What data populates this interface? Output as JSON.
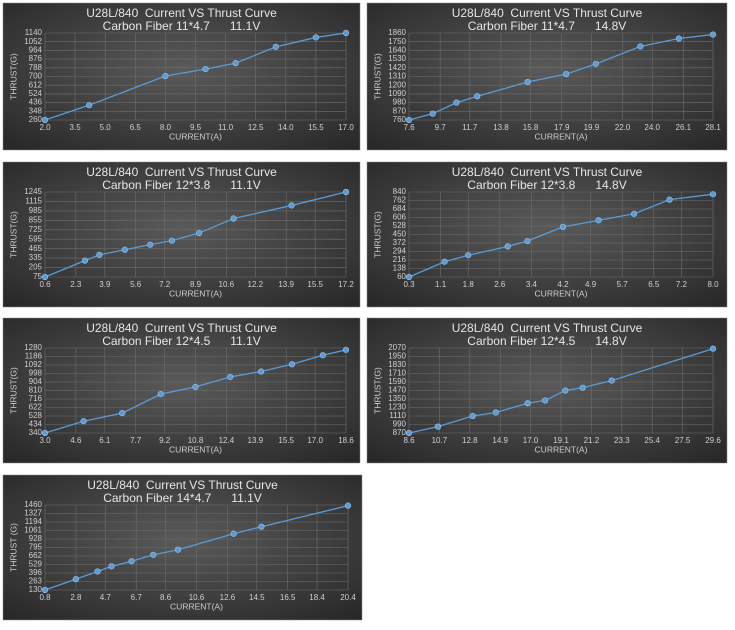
{
  "chart_data": [
    {
      "type": "line",
      "title": "U28L/840  Current VS Thrust Curve",
      "subtitle": "Carbon Fiber 11*4.7      11.1V",
      "xlabel": "CURRENT(A)",
      "ylabel": "THRUST(G)",
      "color": "#5b9bd5",
      "grid": true,
      "x": [
        2,
        4.2,
        8,
        10,
        11.5,
        13.5,
        15.5,
        17
      ],
      "values": [
        260,
        410,
        705,
        775,
        835,
        1000,
        1095,
        1140
      ],
      "xlim": [
        2,
        17
      ],
      "xticks": [
        {
          "value": 2,
          "label": "2.0"
        },
        3.5,
        {
          "value": 5,
          "label": "5.0"
        },
        6.5,
        {
          "value": 8,
          "label": "8.0"
        },
        9.5,
        {
          "value": 11,
          "label": "11.0"
        },
        12.5,
        {
          "value": 14,
          "label": "14.0"
        },
        15.5,
        {
          "value": 17,
          "label": "17.0"
        }
      ],
      "ylim": [
        260,
        1140
      ],
      "yticks": [
        260,
        348,
        436,
        524,
        612,
        700,
        788,
        876,
        964,
        1052,
        1140
      ]
    },
    {
      "type": "line",
      "title": "U28L/840  Current VS Thrust Curve",
      "subtitle": "Carbon Fiber 11*4.7      14.8V",
      "xlabel": "CURRENT(A)",
      "ylabel": "THRUST(G)",
      "color": "#5b9bd5",
      "grid": true,
      "x": [
        7.6,
        9.2,
        10.8,
        12.2,
        15.6,
        18.2,
        20.2,
        23.2,
        25.8,
        28.1
      ],
      "values": [
        760,
        840,
        980,
        1060,
        1240,
        1340,
        1470,
        1690,
        1790,
        1840
      ],
      "xlim": [
        7.6,
        28.1
      ],
      "xticks": [
        7.6,
        9.7,
        11.7,
        13.8,
        15.8,
        17.9,
        19.9,
        {
          "value": 22,
          "label": "22.0"
        },
        {
          "value": 24,
          "label": "24.0"
        },
        26.1,
        28.1
      ],
      "ylim": [
        760,
        1860
      ],
      "yticks": [
        760,
        870,
        980,
        1090,
        1200,
        1310,
        1420,
        1530,
        1640,
        1750,
        1860
      ]
    },
    {
      "type": "line",
      "title": "U28L/840  Current VS Thrust Curve",
      "subtitle": "Carbon Fiber 12*3.8      11.1V",
      "xlabel": "CURRENT(A)",
      "ylabel": "THRUST(G)",
      "color": "#5b9bd5",
      "grid": true,
      "x": [
        0.6,
        2.8,
        3.6,
        5.0,
        6.4,
        7.6,
        9.1,
        11.0,
        14.2,
        17.2
      ],
      "values": [
        75,
        300,
        380,
        450,
        520,
        575,
        680,
        880,
        1060,
        1245
      ],
      "xlim": [
        0.6,
        17.2
      ],
      "xticks": [
        0.6,
        2.3,
        3.9,
        5.6,
        7.2,
        8.9,
        10.6,
        12.2,
        13.9,
        15.5,
        17.2
      ],
      "ylim": [
        75,
        1245
      ],
      "yticks": [
        75,
        205,
        335,
        465,
        595,
        725,
        855,
        985,
        1115,
        1245
      ]
    },
    {
      "type": "line",
      "title": "U28L/840  Current VS Thrust Curve",
      "subtitle": "Carbon Fiber 12*3.8      14.8V",
      "xlabel": "CURRENT(A)",
      "ylabel": "THRUST(G)",
      "color": "#5b9bd5",
      "grid": true,
      "x": [
        0.3,
        1.2,
        1.8,
        2.8,
        3.3,
        4.2,
        5.1,
        6.0,
        6.9,
        8.0
      ],
      "values": [
        60,
        200,
        260,
        340,
        390,
        520,
        580,
        640,
        770,
        820
      ],
      "xlim": [
        0.3,
        8
      ],
      "xticks": [
        0.3,
        1.1,
        1.8,
        2.6,
        3.4,
        4.2,
        4.9,
        5.7,
        6.5,
        7.2,
        {
          "value": 8,
          "label": "8.0"
        }
      ],
      "ylim": [
        60,
        840
      ],
      "yticks": [
        60,
        138,
        216,
        294,
        372,
        450,
        528,
        606,
        684,
        762,
        840
      ]
    },
    {
      "type": "line",
      "title": "U28L/840  Current VS Thrust Curve",
      "subtitle": "Carbon Fiber 12*4.5      11.1V",
      "xlabel": "CURRENT(A)",
      "ylabel": "THRUST(G)",
      "color": "#5b9bd5",
      "grid": true,
      "x": [
        3,
        5,
        7,
        9,
        10.8,
        12.6,
        14.2,
        15.8,
        17.4,
        18.6
      ],
      "values": [
        340,
        470,
        560,
        770,
        850,
        960,
        1020,
        1100,
        1200,
        1260
      ],
      "xlim": [
        3,
        18.6
      ],
      "xticks": [
        {
          "value": 3,
          "label": "3.0"
        },
        4.6,
        6.1,
        7.7,
        9.2,
        10.8,
        12.4,
        13.9,
        15.5,
        {
          "value": 17,
          "label": "17.0"
        },
        18.6
      ],
      "ylim": [
        340,
        1280
      ],
      "yticks": [
        340,
        434,
        528,
        622,
        716,
        810,
        904,
        998,
        1092,
        1186,
        1280
      ]
    },
    {
      "type": "line",
      "title": "U28L/840  Current VS Thrust Curve",
      "subtitle": "Carbon Fiber 12*4.5      14.8V",
      "xlabel": "CURRENT(A)",
      "ylabel": "THRUST(G)",
      "color": "#5b9bd5",
      "grid": true,
      "x": [
        8.6,
        10.6,
        13,
        14.6,
        16.8,
        18,
        19.4,
        20.6,
        22.6,
        29.6
      ],
      "values": [
        870,
        960,
        1110,
        1160,
        1290,
        1330,
        1470,
        1510,
        1610,
        2060
      ],
      "xlim": [
        8.6,
        29.6
      ],
      "xticks": [
        8.6,
        10.7,
        12.8,
        14.9,
        {
          "value": 17,
          "label": "17.0"
        },
        19.1,
        21.2,
        23.3,
        25.4,
        27.5,
        29.6
      ],
      "ylim": [
        870,
        2070
      ],
      "yticks": [
        870,
        990,
        1110,
        1230,
        1350,
        1470,
        1590,
        1710,
        1830,
        1950,
        2070
      ]
    },
    {
      "type": "line",
      "title": "U28L/840  Current VS Thrust Curve",
      "subtitle": "Carbon Fiber 14*4.7      11.1V",
      "xlabel": "CURRENT(A)",
      "ylabel": "THRUST (G)",
      "color": "#5b9bd5",
      "grid": true,
      "x": [
        0.8,
        2.8,
        4.2,
        5.1,
        6.4,
        7.8,
        9.4,
        13,
        14.8,
        20.4
      ],
      "values": [
        130,
        300,
        420,
        500,
        580,
        680,
        760,
        1010,
        1120,
        1450
      ],
      "xlim": [
        0.8,
        20.4
      ],
      "xticks": [
        0.8,
        2.8,
        4.7,
        6.7,
        8.6,
        10.6,
        12.6,
        14.5,
        16.5,
        18.4,
        20.4
      ],
      "ylim": [
        130,
        1460
      ],
      "yticks": [
        130,
        263,
        396,
        529,
        662,
        795,
        928,
        1061,
        1194,
        1327,
        1460
      ]
    }
  ]
}
